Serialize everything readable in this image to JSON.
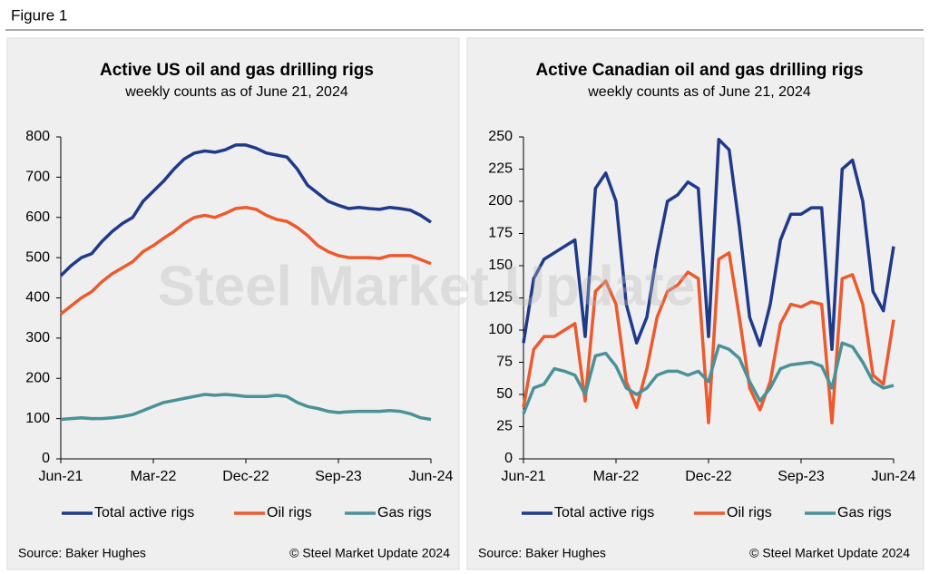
{
  "figure_label": "Figure 1",
  "watermark": "Steel Market Update",
  "chart_data": [
    {
      "type": "line",
      "title": "Active US oil and gas drilling rigs",
      "subtitle": "weekly counts as of June 21, 2024",
      "categories": [
        "Jun-21",
        null,
        null,
        null,
        null,
        null,
        null,
        null,
        null,
        "Mar-22",
        null,
        null,
        null,
        null,
        null,
        null,
        null,
        null,
        "Dec-22",
        null,
        null,
        null,
        null,
        null,
        null,
        null,
        null,
        "Sep-23",
        null,
        null,
        null,
        null,
        null,
        null,
        null,
        null,
        "Jun-24"
      ],
      "ylim": [
        0,
        800
      ],
      "yticks": [
        0,
        100,
        200,
        300,
        400,
        500,
        600,
        700,
        800
      ],
      "series": [
        {
          "name": "Total active rigs",
          "color": "#1f3a8a",
          "values": [
            455,
            480,
            500,
            510,
            540,
            565,
            585,
            600,
            640,
            665,
            690,
            720,
            745,
            760,
            765,
            762,
            768,
            780,
            780,
            772,
            760,
            755,
            750,
            720,
            680,
            660,
            640,
            630,
            622,
            625,
            622,
            620,
            625,
            622,
            618,
            605,
            588
          ]
        },
        {
          "name": "Oil rigs",
          "color": "#ec5a2e",
          "values": [
            360,
            380,
            400,
            415,
            440,
            460,
            475,
            490,
            515,
            530,
            548,
            565,
            585,
            600,
            605,
            600,
            610,
            622,
            625,
            620,
            605,
            595,
            590,
            575,
            555,
            530,
            515,
            505,
            500,
            500,
            500,
            498,
            505,
            505,
            505,
            495,
            485
          ]
        },
        {
          "name": "Gas rigs",
          "color": "#4a9198",
          "values": [
            98,
            100,
            102,
            100,
            100,
            102,
            105,
            110,
            120,
            130,
            140,
            145,
            150,
            155,
            160,
            158,
            160,
            158,
            155,
            155,
            155,
            158,
            155,
            140,
            130,
            125,
            118,
            115,
            117,
            118,
            118,
            118,
            120,
            118,
            112,
            102,
            98
          ]
        }
      ],
      "source": "Source: Baker Hughes",
      "copyright": "© Steel Market Update 2024"
    },
    {
      "type": "line",
      "title": "Active Canadian oil and gas drilling rigs",
      "subtitle": "weekly counts as of June 21, 2024",
      "categories": [
        "Jun-21",
        null,
        null,
        null,
        null,
        null,
        null,
        null,
        null,
        "Mar-22",
        null,
        null,
        null,
        null,
        null,
        null,
        null,
        null,
        "Dec-22",
        null,
        null,
        null,
        null,
        null,
        null,
        null,
        null,
        "Sep-23",
        null,
        null,
        null,
        null,
        null,
        null,
        null,
        null,
        "Jun-24"
      ],
      "ylim": [
        0,
        250
      ],
      "yticks": [
        0,
        25,
        50,
        75,
        100,
        125,
        150,
        175,
        200,
        225,
        250
      ],
      "series": [
        {
          "name": "Total active rigs",
          "color": "#1f3a8a",
          "values": [
            90,
            140,
            155,
            160,
            165,
            170,
            95,
            210,
            222,
            200,
            120,
            90,
            110,
            160,
            200,
            205,
            215,
            210,
            95,
            248,
            240,
            180,
            110,
            88,
            120,
            170,
            190,
            190,
            195,
            195,
            85,
            225,
            232,
            200,
            130,
            115,
            165
          ]
        },
        {
          "name": "Oil rigs",
          "color": "#ec5a2e",
          "values": [
            40,
            85,
            95,
            95,
            100,
            105,
            45,
            130,
            138,
            120,
            60,
            40,
            70,
            110,
            130,
            135,
            145,
            140,
            28,
            155,
            160,
            110,
            55,
            38,
            60,
            105,
            120,
            118,
            122,
            120,
            28,
            140,
            143,
            120,
            65,
            58,
            108
          ]
        },
        {
          "name": "Gas rigs",
          "color": "#4a9198",
          "values": [
            35,
            55,
            58,
            70,
            68,
            65,
            50,
            80,
            82,
            72,
            55,
            50,
            55,
            65,
            68,
            68,
            65,
            68,
            60,
            88,
            85,
            78,
            60,
            45,
            55,
            70,
            73,
            74,
            75,
            72,
            55,
            90,
            87,
            75,
            60,
            55,
            57
          ]
        }
      ],
      "source": "Source: Baker Hughes",
      "copyright": "© Steel Market Update 2024"
    }
  ]
}
